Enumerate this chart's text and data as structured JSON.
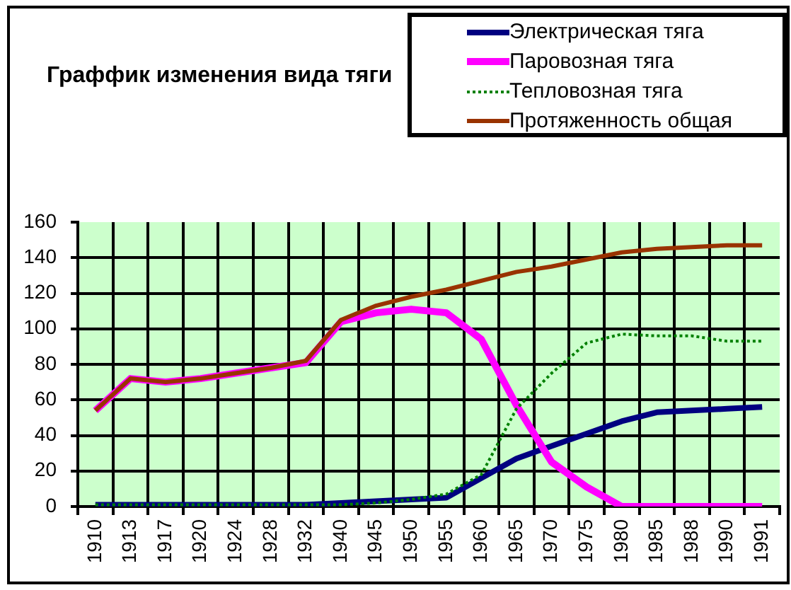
{
  "chart_data": {
    "type": "line",
    "title": "Граффик изменения вида тяги",
    "categories": [
      "1910",
      "1913",
      "1917",
      "1920",
      "1924",
      "1928",
      "1932",
      "1940",
      "1945",
      "1950",
      "1955",
      "1960",
      "1965",
      "1970",
      "1975",
      "1980",
      "1985",
      "1988",
      "1990",
      "1991"
    ],
    "series": [
      {
        "name": "Электрическая тяга",
        "color": "#000080",
        "values": [
          1,
          1,
          1,
          1,
          1,
          1,
          1,
          2,
          3,
          4,
          5,
          16,
          27,
          34,
          41,
          48,
          53,
          54,
          55,
          56
        ]
      },
      {
        "name": "Паровозная тяга",
        "color": "#ff00ff",
        "values": [
          54,
          72,
          70,
          72,
          75,
          78,
          81,
          104,
          109,
          111,
          109,
          94,
          57,
          25,
          11,
          0,
          0,
          0,
          0,
          0
        ]
      },
      {
        "name": "Тепловозная тяга",
        "color": "#008000",
        "line_style": "dotted",
        "values": [
          1,
          1,
          1,
          1,
          1,
          1,
          1,
          1,
          2,
          4,
          7,
          18,
          55,
          75,
          92,
          97,
          96,
          96,
          93,
          93
        ]
      },
      {
        "name": "Протяженность общая",
        "color": "#993300",
        "values": [
          54,
          72,
          70,
          72,
          75,
          78,
          82,
          105,
          113,
          118,
          122,
          127,
          132,
          135,
          139,
          143,
          145,
          146,
          147,
          147
        ]
      }
    ],
    "ylim": [
      0,
      160
    ],
    "yticks": [
      0,
      20,
      40,
      60,
      80,
      100,
      120,
      140,
      160
    ],
    "grid": true,
    "legend": "top right"
  }
}
